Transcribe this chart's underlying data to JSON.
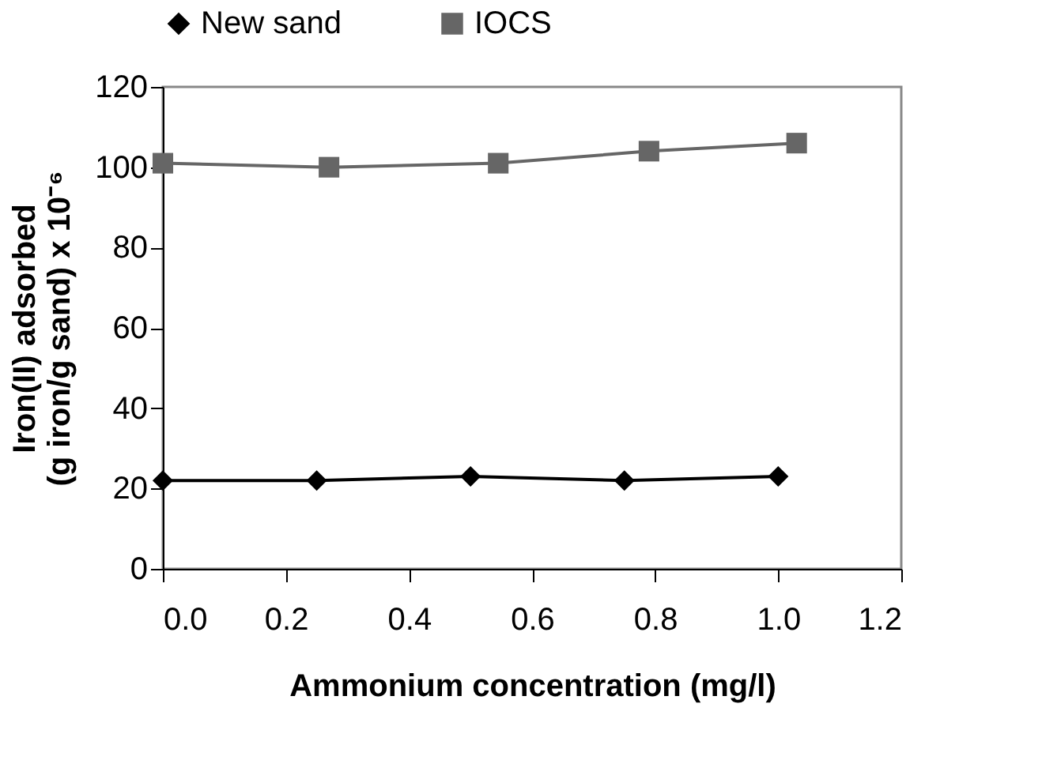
{
  "chart_data": {
    "type": "line",
    "xlabel": "Ammonium concentration (mg/l)",
    "ylabel": "Iron(II) adsorbed\n(g iron/g sand) x 10⁻⁶",
    "series": [
      {
        "name": "New sand",
        "color": "#000000",
        "marker": "diamond",
        "x": [
          0,
          0.25,
          0.5,
          0.75,
          1.0
        ],
        "values": [
          22,
          22,
          23,
          22,
          23
        ]
      },
      {
        "name": "IOCS",
        "color": "#666666",
        "marker": "square",
        "x": [
          0,
          0.27,
          0.545,
          0.79,
          1.03
        ],
        "values": [
          101,
          100,
          101,
          104,
          106
        ]
      }
    ],
    "xlim": [
      0,
      1.2
    ],
    "xticks": [
      {
        "value": 0,
        "label": "0.0"
      },
      0.2,
      0.4,
      0.6,
      0.8,
      {
        "value": 1.0,
        "label": "1.0"
      },
      1.2
    ],
    "ylim": [
      0,
      120
    ],
    "yticks": [
      0,
      20,
      40,
      60,
      80,
      100,
      120
    ],
    "grid": false,
    "legend": "top",
    "line_style": "solid"
  }
}
